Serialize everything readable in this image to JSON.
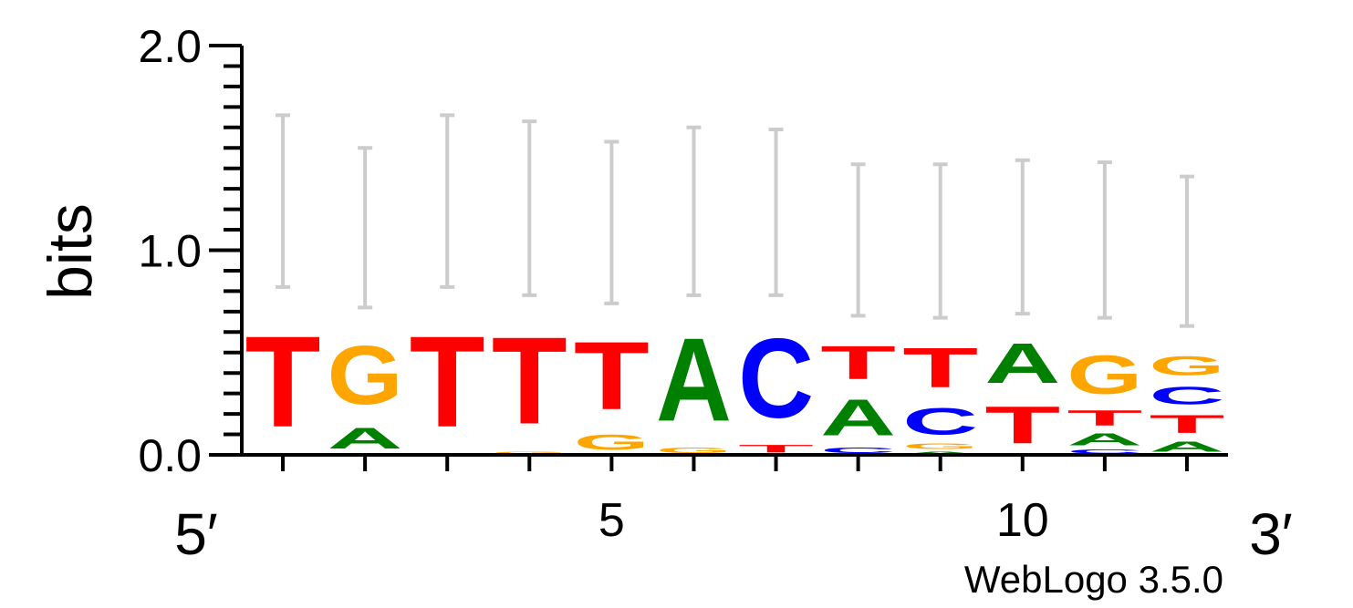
{
  "chart_data": {
    "type": "sequence-logo",
    "ylabel": "bits",
    "ylim": [
      0,
      2
    ],
    "y_ticks": [
      "0.0",
      "1.0",
      "2.0"
    ],
    "x_tick_labels": [
      {
        "position": 5,
        "label": "5"
      },
      {
        "position": 10,
        "label": "10"
      }
    ],
    "end_labels": {
      "left": "5′",
      "right": "3′"
    },
    "footer": "WebLogo 3.5.0",
    "colors": {
      "A": "#008000",
      "C": "#0000ff",
      "G": "#ffa500",
      "T": "#ff0000",
      "error_bar": "#cccccc",
      "axis": "#000000"
    },
    "positions": [
      {
        "position": 1,
        "stack": [
          {
            "letter": "T",
            "bits": 0.71
          }
        ],
        "error": [
          0.82,
          1.66
        ]
      },
      {
        "position": 2,
        "stack": [
          {
            "letter": "A",
            "bits": 0.16
          },
          {
            "letter": "G",
            "bits": 0.46
          }
        ],
        "error": [
          0.72,
          1.5
        ]
      },
      {
        "position": 3,
        "stack": [
          {
            "letter": "T",
            "bits": 0.71
          }
        ],
        "error": [
          0.82,
          1.66
        ]
      },
      {
        "position": 4,
        "stack": [
          {
            "letter": "G",
            "bits": 0.02
          },
          {
            "letter": "T",
            "bits": 0.68
          }
        ],
        "error": [
          0.78,
          1.63
        ]
      },
      {
        "position": 5,
        "stack": [
          {
            "letter": "G",
            "bits": 0.12
          },
          {
            "letter": "T",
            "bits": 0.53
          }
        ],
        "error": [
          0.74,
          1.53
        ]
      },
      {
        "position": 6,
        "stack": [
          {
            "letter": "G",
            "bits": 0.04
          },
          {
            "letter": "A",
            "bits": 0.65
          }
        ],
        "error": [
          0.78,
          1.6
        ]
      },
      {
        "position": 7,
        "stack": [
          {
            "letter": "T",
            "bits": 0.06
          },
          {
            "letter": "C",
            "bits": 0.62
          }
        ],
        "error": [
          0.78,
          1.59
        ]
      },
      {
        "position": 8,
        "stack": [
          {
            "letter": "C",
            "bits": 0.04
          },
          {
            "letter": "A",
            "bits": 0.28
          },
          {
            "letter": "T",
            "bits": 0.26
          }
        ],
        "error": [
          0.68,
          1.42
        ]
      },
      {
        "position": 9,
        "stack": [
          {
            "letter": "A",
            "bits": 0.02
          },
          {
            "letter": "G",
            "bits": 0.04
          },
          {
            "letter": "C",
            "bits": 0.21
          },
          {
            "letter": "T",
            "bits": 0.31
          }
        ],
        "error": [
          0.67,
          1.42
        ]
      },
      {
        "position": 10,
        "stack": [
          {
            "letter": "T",
            "bits": 0.29
          },
          {
            "letter": "A",
            "bits": 0.31
          }
        ],
        "error": [
          0.69,
          1.44
        ]
      },
      {
        "position": 11,
        "stack": [
          {
            "letter": "C",
            "bits": 0.03
          },
          {
            "letter": "A",
            "bits": 0.09
          },
          {
            "letter": "T",
            "bits": 0.12
          },
          {
            "letter": "G",
            "bits": 0.3
          }
        ],
        "error": [
          0.67,
          1.43
        ]
      },
      {
        "position": 12,
        "stack": [
          {
            "letter": "A",
            "bits": 0.08
          },
          {
            "letter": "T",
            "bits": 0.14
          },
          {
            "letter": "C",
            "bits": 0.14
          },
          {
            "letter": "G",
            "bits": 0.15
          }
        ],
        "error": [
          0.63,
          1.36
        ]
      }
    ]
  }
}
